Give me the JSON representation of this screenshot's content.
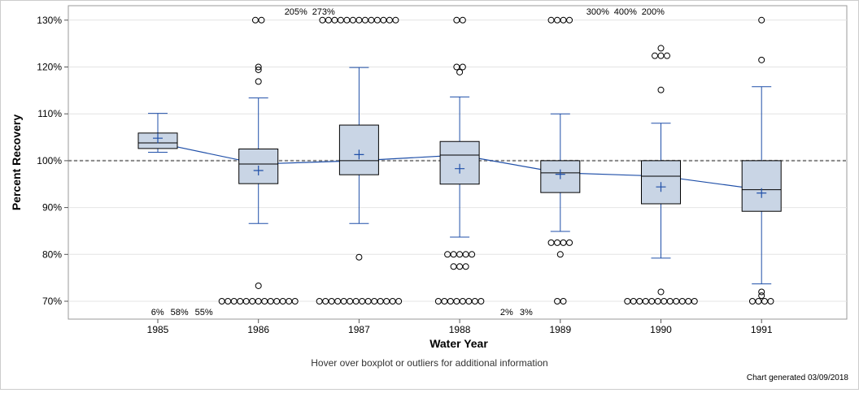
{
  "chart_data": {
    "type": "boxplot",
    "xlabel": "Water Year",
    "ylabel": "Percent Recovery",
    "ylim": [
      68,
      131
    ],
    "yticks": [
      70,
      80,
      90,
      100,
      110,
      120,
      130
    ],
    "ytick_labels": [
      "70%",
      "80%",
      "90%",
      "100%",
      "110%",
      "120%",
      "130%"
    ],
    "reference_line": 100,
    "grid": true,
    "categories": [
      "1985",
      "1986",
      "1987",
      "1988",
      "1989",
      "1990",
      "1991"
    ],
    "boxes": [
      {
        "low": 101.8,
        "q1": 102.6,
        "median": 103.8,
        "q3": 105.9,
        "high": 110.1,
        "mean": 104.8,
        "outliers": []
      },
      {
        "low": 86.6,
        "q1": 95.1,
        "median": 99.3,
        "q3": 102.5,
        "high": 113.4,
        "mean": 97.9,
        "outliers": [
          130,
          130,
          120,
          119.4,
          116.9,
          73.3,
          70,
          70,
          70,
          70,
          70,
          70,
          70,
          70,
          70,
          70,
          70,
          70,
          70
        ]
      },
      {
        "low": 86.6,
        "q1": 97.0,
        "median": 100.0,
        "q3": 107.6,
        "high": 119.9,
        "mean": 101.3,
        "outliers": [
          130,
          130,
          130,
          130,
          130,
          130,
          130,
          130,
          130,
          130,
          130,
          130,
          130,
          79.4,
          70,
          70,
          70,
          70,
          70,
          70,
          70,
          70,
          70,
          70,
          70,
          70,
          70,
          70
        ]
      },
      {
        "low": 83.7,
        "q1": 95.0,
        "median": 101.2,
        "q3": 104.1,
        "high": 113.6,
        "mean": 98.3,
        "outliers": [
          130,
          130,
          120,
          120,
          118.9,
          80,
          80,
          80,
          80,
          80,
          77.4,
          77.4,
          77.4,
          70,
          70,
          70,
          70,
          70,
          70,
          70,
          70
        ]
      },
      {
        "low": 84.9,
        "q1": 93.2,
        "median": 97.4,
        "q3": 100.0,
        "high": 110.0,
        "mean": 97.1,
        "outliers": [
          130,
          130,
          130,
          130,
          82.5,
          82.5,
          82.5,
          82.5,
          80,
          70,
          70
        ]
      },
      {
        "low": 79.2,
        "q1": 90.8,
        "median": 96.7,
        "q3": 100.0,
        "high": 108.0,
        "mean": 94.4,
        "outliers": [
          124,
          122.4,
          122.4,
          122.4,
          115.1,
          72,
          70,
          70,
          70,
          70,
          70,
          70,
          70,
          70,
          70,
          70,
          70,
          70
        ]
      },
      {
        "low": 73.7,
        "q1": 89.2,
        "median": 93.8,
        "q3": 100.0,
        "high": 115.8,
        "mean": 93.1,
        "outliers": [
          130,
          121.5,
          72,
          71.2,
          70,
          70,
          70,
          70
        ]
      }
    ],
    "offscale_labels": [
      {
        "category": "1986",
        "text": "205%",
        "pos": "top"
      },
      {
        "category": "1986",
        "text": "273%",
        "pos": "top"
      },
      {
        "category": "1986",
        "text": "6%",
        "pos": "bottom"
      },
      {
        "category": "1986",
        "text": "58%",
        "pos": "bottom"
      },
      {
        "category": "1986",
        "text": "55%",
        "pos": "bottom"
      },
      {
        "category": "1989",
        "text": "300%",
        "pos": "top"
      },
      {
        "category": "1989",
        "text": "400%",
        "pos": "top"
      },
      {
        "category": "1989",
        "text": "200%",
        "pos": "top"
      },
      {
        "category": "1989",
        "text": "2%",
        "pos": "bottom"
      },
      {
        "category": "1989",
        "text": "3%",
        "pos": "bottom"
      }
    ],
    "colors": {
      "box_fill": "#c9d5e5",
      "box_stroke": "#000000",
      "median_line": "#1f4fa8",
      "whisker": "#1f4fa8",
      "reference": "#888888"
    }
  },
  "footer": {
    "hover_note": "Hover over boxplot or outliers for additional information",
    "generated": "Chart generated 03/09/2018"
  }
}
